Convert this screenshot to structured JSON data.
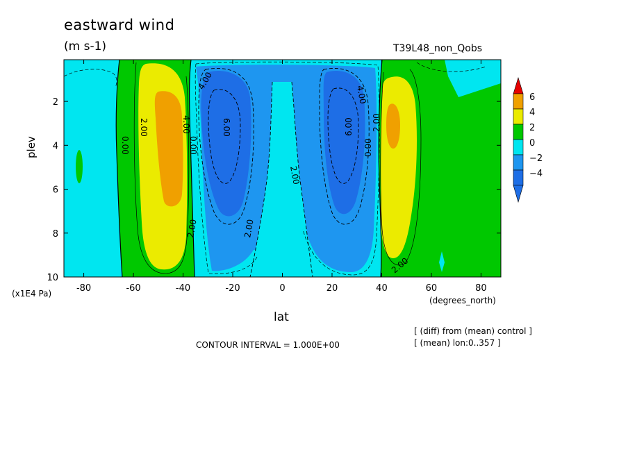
{
  "figure": {
    "title": "eastward wind",
    "units": "(m s-1)",
    "run_label": "T39L48_non_Qobs",
    "contour_interval_text": "CONTOUR INTERVAL = 1.000E+00",
    "note_line1": "[ (diff) from (mean) control ]",
    "note_line2": "[ (mean) lon:0..357 ]"
  },
  "chart_data": {
    "type": "heatmap",
    "title": "eastward wind",
    "xlabel": "lat",
    "xunits": "(degrees_north)",
    "ylabel": "plev",
    "yunits": "(x1E4 Pa)",
    "xlim": [
      -88,
      88
    ],
    "ylim": [
      10,
      0.1
    ],
    "x_ticks": [
      -80,
      -60,
      -40,
      -20,
      0,
      20,
      40,
      60,
      80
    ],
    "x_tick_labels": [
      "-80",
      "-60",
      "-40",
      "-20",
      "0",
      "20",
      "40",
      "60",
      "80"
    ],
    "y_ticks": [
      2,
      4,
      6,
      8,
      10
    ],
    "y_tick_labels": [
      "2",
      "4",
      "6",
      "8",
      "10"
    ],
    "contour_interval": 1.0,
    "colorbar": {
      "levels": [
        -4,
        -2,
        0,
        2,
        4,
        6
      ],
      "labels": [
        "6",
        "4",
        "2",
        "0",
        "−2",
        "−4"
      ],
      "colors": {
        "lt_-4": "#1e6ee6",
        "-4_-2": "#1e96f0",
        "-2_0": "#00e6f0",
        "0_2": "#00c800",
        "2_4": "#ebeb00",
        "4_6": "#f0a000",
        "gt_6": "#e60000"
      }
    },
    "features": [
      {
        "kind": "westerly_max",
        "lat": -45,
        "plev": 4.5,
        "value": 4.8
      },
      {
        "kind": "easterly_min",
        "lat": -25,
        "plev": 4.0,
        "value": -7.5
      },
      {
        "kind": "easterly_min",
        "lat": 25,
        "plev": 3.8,
        "value": -7.5
      },
      {
        "kind": "westerly_max",
        "lat": 45,
        "plev": 4.0,
        "value": 4.2
      },
      {
        "kind": "easterly_ridge",
        "lat": 0,
        "plev": 2.5,
        "value": -1.5
      }
    ],
    "contour_labels": [
      {
        "text": "4.00",
        "lat": -41,
        "plev": 3.5
      },
      {
        "text": "2.00",
        "lat": -50,
        "plev": 3.2
      },
      {
        "text": "0.00",
        "lat": -67,
        "plev": 4.0
      },
      {
        "text": "0.00",
        "lat": -37,
        "plev": 4.0
      },
      {
        "text": "4.00",
        "lat": -29,
        "plev": 1.4
      },
      {
        "text": "6.00",
        "lat": -22,
        "plev": 3.2
      },
      {
        "text": "2.00",
        "lat": -39,
        "plev": 8.7
      },
      {
        "text": "2.00",
        "lat": -11,
        "plev": 8.6
      },
      {
        "text": "2.00",
        "lat": 5,
        "plev": 5.5
      },
      {
        "text": "4.00",
        "lat": 30,
        "plev": 2.0
      },
      {
        "text": "6.00",
        "lat": 29,
        "plev": 3.1
      },
      {
        "text": "0.00",
        "lat": 34,
        "plev": 3.3
      },
      {
        "text": "2.00",
        "lat": 38,
        "plev": 3.0
      },
      {
        "text": "2.00",
        "lat": 48,
        "plev": 9.4
      }
    ]
  }
}
